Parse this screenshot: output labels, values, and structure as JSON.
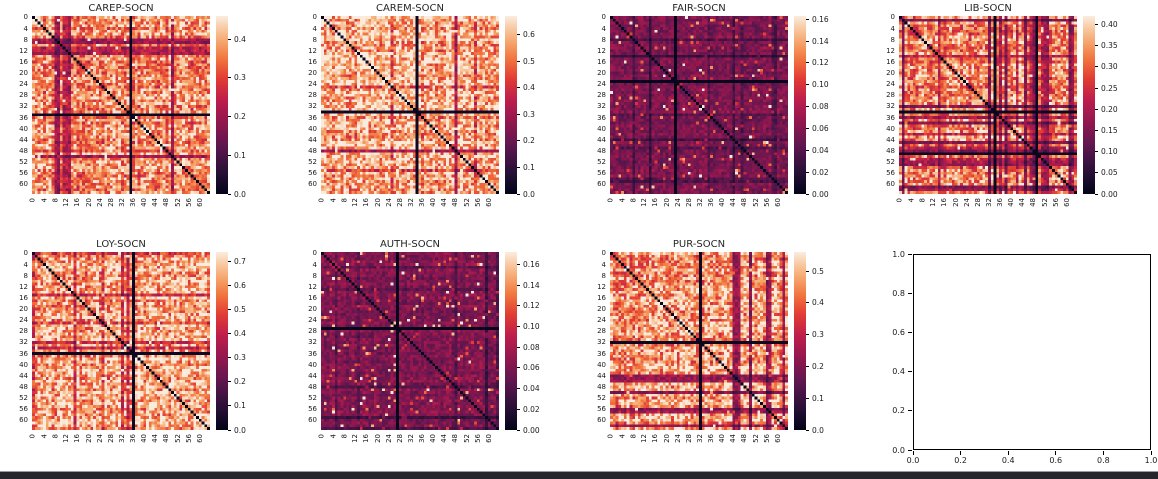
{
  "page": {
    "background": "#ffffff",
    "text_color": "#1a1a1a",
    "bottom_bar_color": "#26262c"
  },
  "colormap": {
    "name": "rocket",
    "stops": [
      [
        "0.00",
        "#03051A"
      ],
      [
        "0.13",
        "#2B1038"
      ],
      [
        "0.27",
        "#5F164F"
      ],
      [
        "0.40",
        "#90174E"
      ],
      [
        "0.53",
        "#BE1E4C"
      ],
      [
        "0.65",
        "#E23D34"
      ],
      [
        "0.76",
        "#F1753F"
      ],
      [
        "0.86",
        "#F5A86F"
      ],
      [
        "0.94",
        "#F8CDA8"
      ],
      [
        "1.00",
        "#FAEBDD"
      ]
    ]
  },
  "chart_data": [
    {
      "type": "heatmap",
      "title": "CAREP-SOCN",
      "size": 64,
      "axis_ticks": [
        0,
        4,
        8,
        12,
        16,
        20,
        24,
        28,
        32,
        36,
        40,
        44,
        48,
        52,
        56,
        60
      ],
      "vmin": 0.0,
      "vmax": 0.46,
      "colorbar_ticks": [
        0.0,
        0.1,
        0.2,
        0.3,
        0.4
      ],
      "tick_decimals": 1,
      "dark_lines": [
        35
      ],
      "diagonal_value": 0,
      "gen": {
        "seed": 101,
        "brightness": 0.93,
        "band_prob": 0.1,
        "spike_prob": 0.035
      }
    },
    {
      "type": "heatmap",
      "title": "CAREM-SOCN",
      "size": 64,
      "axis_ticks": [
        0,
        4,
        8,
        12,
        16,
        20,
        24,
        28,
        32,
        36,
        40,
        44,
        48,
        52,
        56,
        60
      ],
      "vmin": 0.0,
      "vmax": 0.67,
      "colorbar_ticks": [
        0.0,
        0.1,
        0.2,
        0.3,
        0.4,
        0.5,
        0.6
      ],
      "tick_decimals": 1,
      "dark_lines": [
        34
      ],
      "diagonal_value": 0,
      "gen": {
        "seed": 202,
        "brightness": 1.02,
        "band_prob": 0.07,
        "spike_prob": 0.03
      }
    },
    {
      "type": "heatmap",
      "title": "FAIR-SOCN",
      "size": 64,
      "axis_ticks": [
        0,
        4,
        8,
        12,
        16,
        20,
        24,
        28,
        32,
        36,
        40,
        44,
        48,
        52,
        56,
        60
      ],
      "vmin": 0.0,
      "vmax": 0.163,
      "colorbar_ticks": [
        0.0,
        0.02,
        0.04,
        0.06,
        0.08,
        0.1,
        0.12,
        0.14,
        0.16
      ],
      "tick_decimals": 2,
      "dark_lines": [
        23
      ],
      "diagonal_value": 0,
      "gen": {
        "seed": 303,
        "brightness": 0.4,
        "band_prob": 0.12,
        "spike_prob": 0.05
      }
    },
    {
      "type": "heatmap",
      "title": "LIB-SOCN",
      "size": 64,
      "axis_ticks": [
        0,
        4,
        8,
        12,
        16,
        20,
        24,
        28,
        32,
        36,
        40,
        44,
        48,
        52,
        56,
        60
      ],
      "vmin": 0.0,
      "vmax": 0.42,
      "colorbar_ticks": [
        0.0,
        0.05,
        0.1,
        0.15,
        0.2,
        0.25,
        0.3,
        0.35,
        0.4
      ],
      "tick_decimals": 2,
      "dark_lines": [
        34,
        49
      ],
      "diagonal_value": 0,
      "gen": {
        "seed": 404,
        "brightness": 0.88,
        "band_prob": 0.16,
        "spike_prob": 0.03
      }
    },
    {
      "type": "heatmap",
      "title": "LOY-SOCN",
      "size": 64,
      "axis_ticks": [
        0,
        4,
        8,
        12,
        16,
        20,
        24,
        28,
        32,
        36,
        40,
        44,
        48,
        52,
        56,
        60
      ],
      "vmin": 0.0,
      "vmax": 0.74,
      "colorbar_ticks": [
        0.0,
        0.1,
        0.2,
        0.3,
        0.4,
        0.5,
        0.6,
        0.7
      ],
      "tick_decimals": 1,
      "dark_lines": [
        36
      ],
      "diagonal_value": 0,
      "gen": {
        "seed": 505,
        "brightness": 1.0,
        "band_prob": 0.1,
        "spike_prob": 0.03
      }
    },
    {
      "type": "heatmap",
      "title": "AUTH-SOCN",
      "size": 64,
      "axis_ticks": [
        0,
        4,
        8,
        12,
        16,
        20,
        24,
        28,
        32,
        36,
        40,
        44,
        48,
        52,
        56,
        60
      ],
      "vmin": 0.0,
      "vmax": 0.172,
      "colorbar_ticks": [
        0.0,
        0.02,
        0.04,
        0.06,
        0.08,
        0.1,
        0.12,
        0.14,
        0.16
      ],
      "tick_decimals": 2,
      "dark_lines": [
        27
      ],
      "diagonal_value": 0,
      "gen": {
        "seed": 606,
        "brightness": 0.42,
        "band_prob": 0.12,
        "spike_prob": 0.05
      }
    },
    {
      "type": "heatmap",
      "title": "PUR-SOCN",
      "size": 64,
      "axis_ticks": [
        0,
        4,
        8,
        12,
        16,
        20,
        24,
        28,
        32,
        36,
        40,
        44,
        48,
        52,
        56,
        60
      ],
      "vmin": 0.0,
      "vmax": 0.56,
      "colorbar_ticks": [
        0.0,
        0.1,
        0.2,
        0.3,
        0.4,
        0.5
      ],
      "tick_decimals": 1,
      "dark_lines": [
        32
      ],
      "diagonal_value": 0,
      "gen": {
        "seed": 707,
        "brightness": 0.97,
        "band_prob": 0.12,
        "spike_prob": 0.03
      }
    },
    {
      "type": "empty",
      "title": "",
      "xlim": [
        0.0,
        1.0
      ],
      "ylim": [
        0.0,
        1.0
      ],
      "x_ticks": [
        0.0,
        0.2,
        0.4,
        0.6,
        0.8,
        1.0
      ],
      "y_ticks": [
        0.0,
        0.2,
        0.4,
        0.6,
        0.8,
        1.0
      ],
      "tick_decimals": 1
    }
  ]
}
